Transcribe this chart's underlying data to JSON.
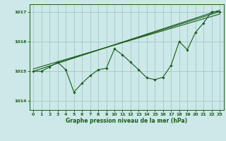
{
  "bg_color": "#cce8e8",
  "grid_color": "#aacccc",
  "line_color": "#1a5c1a",
  "title": "Graphe pression niveau de la mer (hPa)",
  "xlim": [
    -0.5,
    23.5
  ],
  "ylim": [
    1013.7,
    1017.25
  ],
  "yticks": [
    1014,
    1015,
    1016,
    1017
  ],
  "xticks": [
    0,
    1,
    2,
    3,
    4,
    5,
    6,
    7,
    8,
    9,
    10,
    11,
    12,
    13,
    14,
    15,
    16,
    17,
    18,
    19,
    20,
    21,
    22,
    23
  ],
  "main_series": {
    "x": [
      0,
      1,
      2,
      3,
      4,
      5,
      6,
      7,
      8,
      9,
      10,
      11,
      12,
      13,
      14,
      15,
      16,
      17,
      18,
      19,
      20,
      21,
      22,
      23
    ],
    "y": [
      1015.0,
      1015.0,
      1015.15,
      1015.3,
      1015.05,
      1014.3,
      1014.6,
      1014.85,
      1015.05,
      1015.1,
      1015.75,
      1015.55,
      1015.3,
      1015.05,
      1014.78,
      1014.72,
      1014.8,
      1015.2,
      1016.0,
      1015.72,
      1016.3,
      1016.62,
      1017.0,
      1017.0
    ]
  },
  "trend_line1": {
    "x": [
      0,
      23
    ],
    "y": [
      1015.0,
      1017.05
    ]
  },
  "trend_line2": {
    "x": [
      0,
      23
    ],
    "y": [
      1015.08,
      1016.92
    ]
  },
  "trend_line3": {
    "x": [
      3,
      23
    ],
    "y": [
      1015.28,
      1017.0
    ]
  }
}
